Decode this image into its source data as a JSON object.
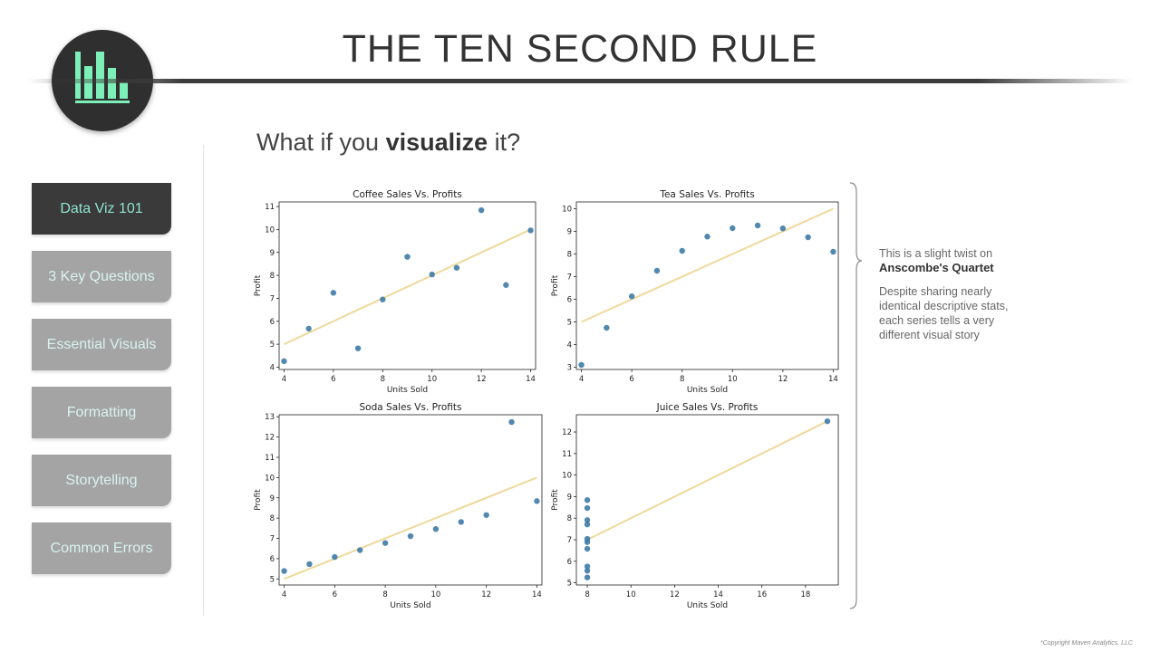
{
  "slide": {
    "title": "THE TEN SECOND RULE",
    "subtitle_pre": "What if you ",
    "subtitle_bold": "visualize",
    "subtitle_post": " it?"
  },
  "nav": {
    "items": [
      {
        "label": "Data Viz 101",
        "active": true
      },
      {
        "label": "3 Key Questions",
        "active": false
      },
      {
        "label": "Essential Visuals",
        "active": false
      },
      {
        "label": "Formatting",
        "active": false
      },
      {
        "label": "Storytelling",
        "active": false
      },
      {
        "label": "Common Errors",
        "active": false
      }
    ]
  },
  "note": {
    "line1": "This is a slight twist on",
    "line1_bold": "Anscombe's Quartet",
    "line2": "Despite sharing nearly identical descriptive stats, each series tells a very different visual story"
  },
  "footer": {
    "copyright": "*Copyright Maven Analytics, LLC"
  },
  "colors": {
    "point": "#3e7ba6",
    "fit_line": "#efd89a",
    "nav_active_bg": "#3a3a3a",
    "nav_bg": "#a4a4a4",
    "nav_text": "#d8f3ef",
    "logo_bars": "#7cf0b8"
  },
  "chart_data": [
    {
      "type": "scatter",
      "title": "Coffee Sales Vs. Profits",
      "xlabel": "Units Sold",
      "ylabel": "Profit",
      "xlim": [
        3.8,
        14.2
      ],
      "ylim": [
        3.9,
        11.2
      ],
      "xticks": [
        4,
        6,
        8,
        10,
        12,
        14
      ],
      "yticks": [
        4,
        5,
        6,
        7,
        8,
        9,
        10,
        11
      ],
      "x": [
        10,
        8,
        13,
        9,
        11,
        14,
        6,
        4,
        12,
        7,
        5
      ],
      "y": [
        8.04,
        6.95,
        7.58,
        8.81,
        8.33,
        9.96,
        7.24,
        4.26,
        10.84,
        4.82,
        5.68
      ],
      "fit": {
        "x": [
          4,
          14
        ],
        "y": [
          5.0,
          10.0
        ]
      }
    },
    {
      "type": "scatter",
      "title": "Tea Sales Vs. Profits",
      "xlabel": "Units Sold",
      "ylabel": "Profit",
      "xlim": [
        3.8,
        14.2
      ],
      "ylim": [
        2.9,
        10.3
      ],
      "xticks": [
        4,
        6,
        8,
        10,
        12,
        14
      ],
      "yticks": [
        3,
        4,
        5,
        6,
        7,
        8,
        9,
        10
      ],
      "x": [
        10,
        8,
        13,
        9,
        11,
        14,
        6,
        4,
        12,
        7,
        5
      ],
      "y": [
        9.14,
        8.14,
        8.74,
        8.77,
        9.26,
        8.1,
        6.13,
        3.1,
        9.13,
        7.26,
        4.74
      ],
      "fit": {
        "x": [
          4,
          14
        ],
        "y": [
          5.0,
          10.0
        ]
      }
    },
    {
      "type": "scatter",
      "title": "Soda Sales Vs. Profits",
      "xlabel": "Units Sold",
      "ylabel": "Profit",
      "xlim": [
        3.8,
        14.2
      ],
      "ylim": [
        4.7,
        13.1
      ],
      "xticks": [
        4,
        6,
        8,
        10,
        12,
        14
      ],
      "yticks": [
        5,
        6,
        7,
        8,
        9,
        10,
        11,
        12,
        13
      ],
      "x": [
        10,
        8,
        13,
        9,
        11,
        14,
        6,
        4,
        12,
        7,
        5
      ],
      "y": [
        7.46,
        6.77,
        12.74,
        7.11,
        7.81,
        8.84,
        6.08,
        5.39,
        8.15,
        6.42,
        5.73
      ],
      "fit": {
        "x": [
          4,
          14
        ],
        "y": [
          5.0,
          10.0
        ]
      }
    },
    {
      "type": "scatter",
      "title": "Juice Sales Vs. Profits",
      "xlabel": "Units Sold",
      "ylabel": "Profit",
      "xlim": [
        7.5,
        19.5
      ],
      "ylim": [
        4.9,
        12.8
      ],
      "xticks": [
        8,
        10,
        12,
        14,
        16,
        18
      ],
      "yticks": [
        5,
        6,
        7,
        8,
        9,
        10,
        11,
        12
      ],
      "x": [
        8,
        8,
        8,
        8,
        8,
        8,
        8,
        19,
        8,
        8,
        8
      ],
      "y": [
        6.58,
        5.76,
        7.71,
        8.84,
        8.47,
        7.04,
        5.25,
        12.5,
        5.56,
        7.91,
        6.89
      ],
      "fit": {
        "x": [
          8,
          19
        ],
        "y": [
          7.0,
          12.5
        ]
      }
    }
  ]
}
